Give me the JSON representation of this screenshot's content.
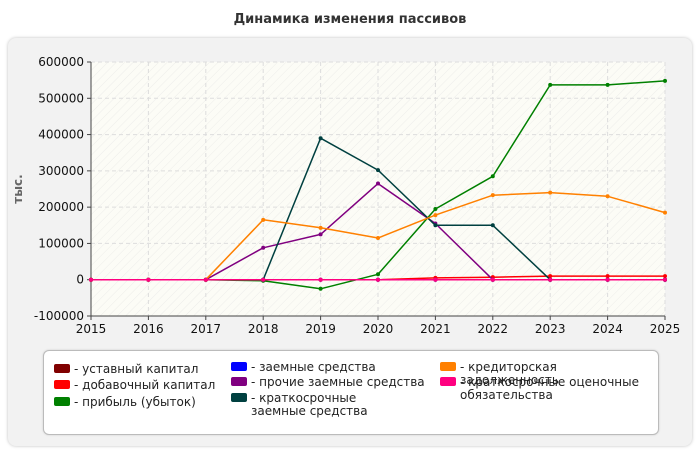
{
  "chart_data": {
    "type": "line",
    "title": "Динамика изменения пассивов",
    "ylabel": "тыс.",
    "xlabel": "",
    "x": [
      2015,
      2016,
      2017,
      2018,
      2019,
      2020,
      2021,
      2022,
      2023,
      2024,
      2025
    ],
    "x_ticks": [
      "2015",
      "2016",
      "2017",
      "2018",
      "2019",
      "2020",
      "2021",
      "2022",
      "2023",
      "2024",
      "2025"
    ],
    "ylim": [
      -100000,
      600000
    ],
    "y_ticks": [
      "-100000",
      "0",
      "100000",
      "200000",
      "300000",
      "400000",
      "500000",
      "600000"
    ],
    "grid": true,
    "legend_position": "bottom",
    "series": [
      {
        "name": "- уставный капитал",
        "color": "#800000",
        "values": [
          0,
          0,
          0,
          0,
          0,
          0,
          0,
          0,
          0,
          0,
          0
        ]
      },
      {
        "name": "- добавочный капитал",
        "color": "#ff0000",
        "values": [
          0,
          0,
          0,
          0,
          0,
          0,
          5000,
          7000,
          10000,
          10000,
          10000
        ]
      },
      {
        "name": "- прибыль (убыток)",
        "color": "#008000",
        "values": [
          0,
          0,
          0,
          -3000,
          -25000,
          15000,
          195000,
          285000,
          537000,
          537000,
          548000
        ]
      },
      {
        "name": "- заемные средства",
        "color": "#0000ff",
        "values": [
          0,
          0,
          0,
          0,
          0,
          0,
          0,
          0,
          0,
          0,
          0
        ]
      },
      {
        "name": "- прочие заемные средства",
        "color": "#800080",
        "values": [
          0,
          0,
          0,
          88000,
          125000,
          265000,
          155000,
          0,
          0,
          0,
          0
        ]
      },
      {
        "name": "- краткосрочные заемные средства",
        "color": "#004040",
        "values": [
          0,
          0,
          0,
          0,
          390000,
          302000,
          150000,
          150000,
          0,
          0,
          0
        ]
      },
      {
        "name": "- кредиторская задолженность",
        "color": "#ff8000",
        "values": [
          0,
          0,
          0,
          165000,
          143000,
          115000,
          178000,
          233000,
          240000,
          230000,
          185000
        ]
      },
      {
        "name": "- краткосрочные оценочные обязательства",
        "color": "#ff0080",
        "values": [
          0,
          0,
          0,
          0,
          0,
          0,
          0,
          0,
          0,
          0,
          0
        ]
      }
    ]
  }
}
